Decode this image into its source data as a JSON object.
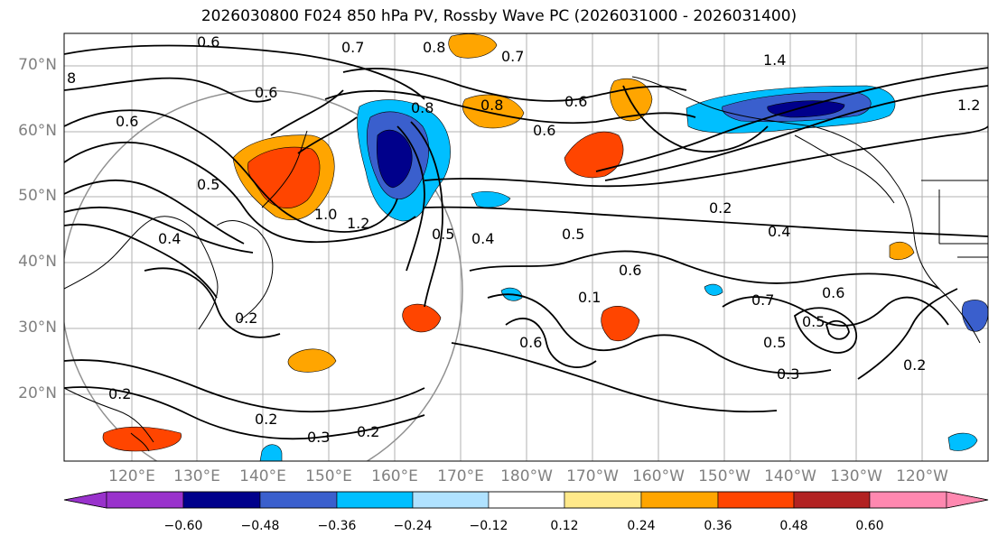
{
  "title": "2026030800 F024 850 hPa PV, Rossby Wave PC (2026031000 - 2026031400)",
  "lat_labels": [
    "70°N",
    "60°N",
    "50°N",
    "40°N",
    "30°N",
    "20°N"
  ],
  "lon_labels": [
    "120°E",
    "130°E",
    "140°E",
    "150°E",
    "160°E",
    "170°E",
    "180°W",
    "170°W",
    "160°W",
    "150°W",
    "140°W",
    "130°W",
    "120°W"
  ],
  "colorbar": {
    "ticks": [
      "−0.60",
      "−0.48",
      "−0.36",
      "−0.24",
      "−0.12",
      "0.12",
      "0.24",
      "0.36",
      "0.48",
      "0.60"
    ],
    "colors": [
      "#9932cc",
      "#00008b",
      "#3a5fcd",
      "#00bfff",
      "#b0e2ff",
      "#ffffff",
      "#ffe98a",
      "#ffa500",
      "#ff4500",
      "#b22222",
      "#ff88b0"
    ]
  },
  "contour_labels": [
    "0.6",
    "0.7",
    "0.8",
    "0.7",
    "1.4",
    "0.6",
    "8",
    "0.6",
    "0.6",
    "0.8",
    "0.8",
    "0.6",
    "0.5",
    "1.0",
    "1.2",
    "0.5",
    "0.4",
    "0.5",
    "0.2",
    "0.4",
    "0.4",
    "0.2",
    "0.2",
    "0.1",
    "0.6",
    "0.7",
    "0.6",
    "0.5",
    "0.6",
    "0.5",
    "0.3",
    "0.2",
    "0.3",
    "0.2",
    "0.2",
    "1.2"
  ]
}
